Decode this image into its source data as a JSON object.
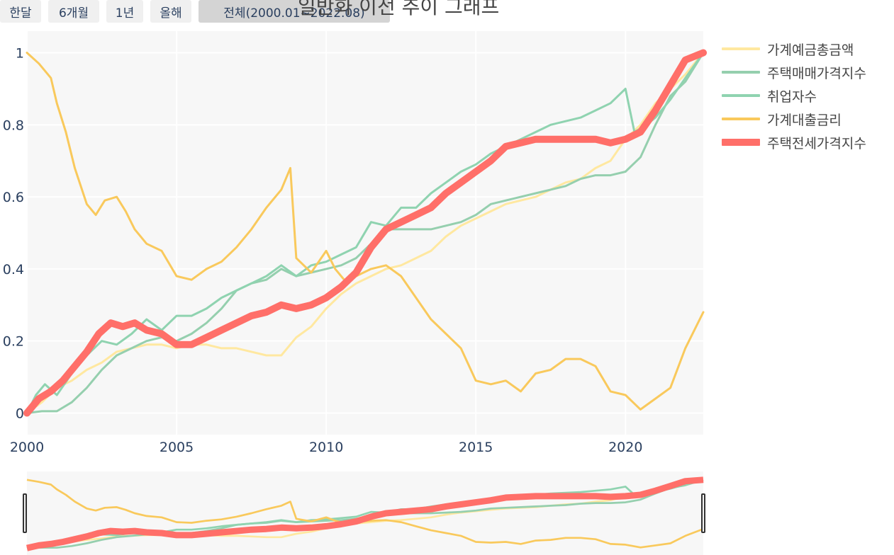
{
  "range_buttons": [
    {
      "label": "한달"
    },
    {
      "label": "6개월"
    },
    {
      "label": "1년"
    },
    {
      "label": "올해"
    },
    {
      "label": "전체(2000.01~2022.08)",
      "active": true
    }
  ],
  "title": "일반화 이전 추이 그래프",
  "chart_data": {
    "type": "line",
    "x_axis": {
      "ticks": [
        "2000",
        "2005",
        "2010",
        "2015",
        "2020"
      ],
      "range": [
        2000.0,
        2022.6
      ]
    },
    "y_axis": {
      "ticks": [
        "0",
        "0.2",
        "0.4",
        "0.6",
        "0.8",
        "1"
      ],
      "range": [
        -0.06,
        1.06
      ]
    },
    "grid": true,
    "legend_position": "right",
    "has_range_slider": true,
    "series": [
      {
        "name": "가계예금총금액",
        "color": "#ffe8a0",
        "width": 3,
        "points": [
          [
            2000.0,
            0.0
          ],
          [
            2000.5,
            0.03
          ],
          [
            2001.0,
            0.07
          ],
          [
            2001.5,
            0.09
          ],
          [
            2002.0,
            0.12
          ],
          [
            2002.5,
            0.14
          ],
          [
            2003.0,
            0.17
          ],
          [
            2003.5,
            0.18
          ],
          [
            2004.0,
            0.19
          ],
          [
            2004.5,
            0.19
          ],
          [
            2005.0,
            0.18
          ],
          [
            2005.5,
            0.19
          ],
          [
            2006.0,
            0.19
          ],
          [
            2006.5,
            0.18
          ],
          [
            2007.0,
            0.18
          ],
          [
            2007.5,
            0.17
          ],
          [
            2008.0,
            0.16
          ],
          [
            2008.5,
            0.16
          ],
          [
            2009.0,
            0.21
          ],
          [
            2009.5,
            0.24
          ],
          [
            2010.0,
            0.29
          ],
          [
            2010.5,
            0.33
          ],
          [
            2011.0,
            0.36
          ],
          [
            2011.5,
            0.38
          ],
          [
            2012.0,
            0.4
          ],
          [
            2012.5,
            0.41
          ],
          [
            2013.0,
            0.43
          ],
          [
            2013.5,
            0.45
          ],
          [
            2014.0,
            0.49
          ],
          [
            2014.5,
            0.52
          ],
          [
            2015.0,
            0.54
          ],
          [
            2015.5,
            0.56
          ],
          [
            2016.0,
            0.58
          ],
          [
            2016.5,
            0.59
          ],
          [
            2017.0,
            0.6
          ],
          [
            2017.5,
            0.62
          ],
          [
            2018.0,
            0.64
          ],
          [
            2018.5,
            0.65
          ],
          [
            2019.0,
            0.68
          ],
          [
            2019.5,
            0.7
          ],
          [
            2020.0,
            0.76
          ],
          [
            2020.5,
            0.8
          ],
          [
            2021.0,
            0.86
          ],
          [
            2021.5,
            0.9
          ],
          [
            2022.0,
            0.94
          ],
          [
            2022.6,
            1.0
          ]
        ]
      },
      {
        "name": "주택매매가격지수",
        "color": "#95cfae",
        "width": 3,
        "points": [
          [
            2000.0,
            0.0
          ],
          [
            2000.5,
            0.005
          ],
          [
            2001.0,
            0.005
          ],
          [
            2001.5,
            0.03
          ],
          [
            2002.0,
            0.07
          ],
          [
            2002.5,
            0.12
          ],
          [
            2003.0,
            0.16
          ],
          [
            2003.5,
            0.18
          ],
          [
            2004.0,
            0.2
          ],
          [
            2004.5,
            0.21
          ],
          [
            2005.0,
            0.2
          ],
          [
            2005.5,
            0.22
          ],
          [
            2006.0,
            0.25
          ],
          [
            2006.5,
            0.29
          ],
          [
            2007.0,
            0.34
          ],
          [
            2007.5,
            0.36
          ],
          [
            2008.0,
            0.37
          ],
          [
            2008.5,
            0.4
          ],
          [
            2009.0,
            0.38
          ],
          [
            2009.5,
            0.39
          ],
          [
            2010.0,
            0.4
          ],
          [
            2010.5,
            0.41
          ],
          [
            2011.0,
            0.43
          ],
          [
            2011.5,
            0.47
          ],
          [
            2012.0,
            0.51
          ],
          [
            2012.5,
            0.51
          ],
          [
            2013.0,
            0.51
          ],
          [
            2013.5,
            0.51
          ],
          [
            2014.0,
            0.52
          ],
          [
            2014.5,
            0.53
          ],
          [
            2015.0,
            0.55
          ],
          [
            2015.5,
            0.58
          ],
          [
            2016.0,
            0.59
          ],
          [
            2016.5,
            0.6
          ],
          [
            2017.0,
            0.61
          ],
          [
            2017.5,
            0.62
          ],
          [
            2018.0,
            0.63
          ],
          [
            2018.5,
            0.65
          ],
          [
            2019.0,
            0.66
          ],
          [
            2019.5,
            0.66
          ],
          [
            2020.0,
            0.67
          ],
          [
            2020.5,
            0.71
          ],
          [
            2021.0,
            0.8
          ],
          [
            2021.5,
            0.88
          ],
          [
            2022.0,
            0.92
          ],
          [
            2022.6,
            1.0
          ]
        ]
      },
      {
        "name": "취업자수",
        "color": "#8fd3b0",
        "width": 3,
        "points": [
          [
            2000.0,
            0.0
          ],
          [
            2000.3,
            0.05
          ],
          [
            2000.6,
            0.08
          ],
          [
            2001.0,
            0.05
          ],
          [
            2001.5,
            0.11
          ],
          [
            2002.0,
            0.16
          ],
          [
            2002.5,
            0.2
          ],
          [
            2003.0,
            0.19
          ],
          [
            2003.5,
            0.22
          ],
          [
            2004.0,
            0.26
          ],
          [
            2004.5,
            0.23
          ],
          [
            2005.0,
            0.27
          ],
          [
            2005.5,
            0.27
          ],
          [
            2006.0,
            0.29
          ],
          [
            2006.5,
            0.32
          ],
          [
            2007.0,
            0.34
          ],
          [
            2007.5,
            0.36
          ],
          [
            2008.0,
            0.38
          ],
          [
            2008.5,
            0.41
          ],
          [
            2009.0,
            0.38
          ],
          [
            2009.5,
            0.41
          ],
          [
            2010.0,
            0.42
          ],
          [
            2010.5,
            0.44
          ],
          [
            2011.0,
            0.46
          ],
          [
            2011.5,
            0.53
          ],
          [
            2012.0,
            0.52
          ],
          [
            2012.5,
            0.57
          ],
          [
            2013.0,
            0.57
          ],
          [
            2013.5,
            0.61
          ],
          [
            2014.0,
            0.64
          ],
          [
            2014.5,
            0.67
          ],
          [
            2015.0,
            0.69
          ],
          [
            2015.5,
            0.72
          ],
          [
            2016.0,
            0.74
          ],
          [
            2016.5,
            0.76
          ],
          [
            2017.0,
            0.78
          ],
          [
            2017.5,
            0.8
          ],
          [
            2018.0,
            0.81
          ],
          [
            2018.5,
            0.82
          ],
          [
            2019.0,
            0.84
          ],
          [
            2019.5,
            0.86
          ],
          [
            2020.0,
            0.9
          ],
          [
            2020.3,
            0.78
          ],
          [
            2020.7,
            0.8
          ],
          [
            2021.0,
            0.82
          ],
          [
            2021.5,
            0.87
          ],
          [
            2022.0,
            0.93
          ],
          [
            2022.6,
            1.0
          ]
        ]
      },
      {
        "name": "가계대출금리",
        "color": "#f9c95c",
        "width": 3,
        "points": [
          [
            2000.0,
            1.0
          ],
          [
            2000.4,
            0.97
          ],
          [
            2000.8,
            0.93
          ],
          [
            2001.0,
            0.86
          ],
          [
            2001.3,
            0.78
          ],
          [
            2001.6,
            0.68
          ],
          [
            2002.0,
            0.58
          ],
          [
            2002.3,
            0.55
          ],
          [
            2002.6,
            0.59
          ],
          [
            2003.0,
            0.6
          ],
          [
            2003.3,
            0.56
          ],
          [
            2003.6,
            0.51
          ],
          [
            2004.0,
            0.47
          ],
          [
            2004.5,
            0.45
          ],
          [
            2005.0,
            0.38
          ],
          [
            2005.5,
            0.37
          ],
          [
            2006.0,
            0.4
          ],
          [
            2006.5,
            0.42
          ],
          [
            2007.0,
            0.46
          ],
          [
            2007.5,
            0.51
          ],
          [
            2008.0,
            0.57
          ],
          [
            2008.5,
            0.62
          ],
          [
            2008.8,
            0.68
          ],
          [
            2009.0,
            0.43
          ],
          [
            2009.5,
            0.39
          ],
          [
            2010.0,
            0.45
          ],
          [
            2010.3,
            0.4
          ],
          [
            2010.7,
            0.36
          ],
          [
            2011.0,
            0.38
          ],
          [
            2011.5,
            0.4
          ],
          [
            2012.0,
            0.41
          ],
          [
            2012.5,
            0.38
          ],
          [
            2013.0,
            0.32
          ],
          [
            2013.5,
            0.26
          ],
          [
            2014.0,
            0.22
          ],
          [
            2014.5,
            0.18
          ],
          [
            2015.0,
            0.09
          ],
          [
            2015.5,
            0.08
          ],
          [
            2016.0,
            0.09
          ],
          [
            2016.5,
            0.06
          ],
          [
            2017.0,
            0.11
          ],
          [
            2017.5,
            0.12
          ],
          [
            2018.0,
            0.15
          ],
          [
            2018.5,
            0.15
          ],
          [
            2019.0,
            0.13
          ],
          [
            2019.5,
            0.06
          ],
          [
            2020.0,
            0.05
          ],
          [
            2020.5,
            0.01
          ],
          [
            2021.0,
            0.04
          ],
          [
            2021.5,
            0.07
          ],
          [
            2022.0,
            0.18
          ],
          [
            2022.6,
            0.28
          ]
        ]
      },
      {
        "name": "주택전세가격지수",
        "color": "#ff6f69",
        "width": 10,
        "points": [
          [
            2000.0,
            0.0
          ],
          [
            2000.4,
            0.04
          ],
          [
            2000.8,
            0.06
          ],
          [
            2001.2,
            0.09
          ],
          [
            2001.6,
            0.13
          ],
          [
            2002.0,
            0.17
          ],
          [
            2002.4,
            0.22
          ],
          [
            2002.8,
            0.25
          ],
          [
            2003.2,
            0.24
          ],
          [
            2003.6,
            0.25
          ],
          [
            2004.0,
            0.23
          ],
          [
            2004.5,
            0.22
          ],
          [
            2005.0,
            0.19
          ],
          [
            2005.5,
            0.19
          ],
          [
            2006.0,
            0.21
          ],
          [
            2006.5,
            0.23
          ],
          [
            2007.0,
            0.25
          ],
          [
            2007.5,
            0.27
          ],
          [
            2008.0,
            0.28
          ],
          [
            2008.5,
            0.3
          ],
          [
            2009.0,
            0.29
          ],
          [
            2009.5,
            0.3
          ],
          [
            2010.0,
            0.32
          ],
          [
            2010.5,
            0.35
          ],
          [
            2011.0,
            0.39
          ],
          [
            2011.5,
            0.46
          ],
          [
            2012.0,
            0.51
          ],
          [
            2012.5,
            0.53
          ],
          [
            2013.0,
            0.55
          ],
          [
            2013.5,
            0.57
          ],
          [
            2014.0,
            0.61
          ],
          [
            2014.5,
            0.64
          ],
          [
            2015.0,
            0.67
          ],
          [
            2015.5,
            0.7
          ],
          [
            2016.0,
            0.74
          ],
          [
            2016.5,
            0.75
          ],
          [
            2017.0,
            0.76
          ],
          [
            2017.5,
            0.76
          ],
          [
            2018.0,
            0.76
          ],
          [
            2018.5,
            0.76
          ],
          [
            2019.0,
            0.76
          ],
          [
            2019.5,
            0.75
          ],
          [
            2020.0,
            0.76
          ],
          [
            2020.5,
            0.78
          ],
          [
            2021.0,
            0.84
          ],
          [
            2021.5,
            0.91
          ],
          [
            2022.0,
            0.98
          ],
          [
            2022.6,
            1.0
          ]
        ]
      }
    ]
  }
}
